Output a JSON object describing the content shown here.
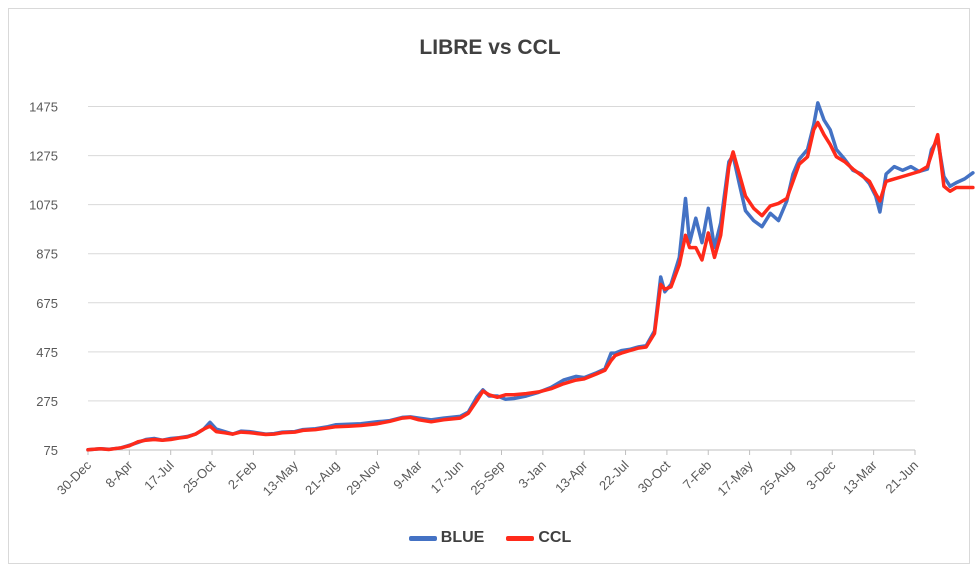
{
  "chart_data": {
    "type": "line",
    "title": "LIBRE vs CCL",
    "xlabel": "",
    "ylabel": "",
    "ylim": [
      75,
      1575
    ],
    "yticks": [
      75,
      275,
      475,
      675,
      875,
      1075,
      1275,
      1475
    ],
    "grid": true,
    "legend": "bottom",
    "categories": [
      "30-Dec",
      "8-Apr",
      "17-Jul",
      "25-Oct",
      "2-Feb",
      "13-May",
      "21-Aug",
      "29-Nov",
      "9-Mar",
      "17-Jun",
      "25-Sep",
      "3-Jan",
      "13-Apr",
      "22-Jul",
      "30-Oct",
      "7-Feb",
      "17-May",
      "25-Aug",
      "3-Dec",
      "13-Mar",
      "21-Jun"
    ],
    "series": [
      {
        "name": "BLUE",
        "color": "#4472c4",
        "values": [
          [
            0,
            76
          ],
          [
            0.3,
            80
          ],
          [
            0.5,
            78
          ],
          [
            0.8,
            84
          ],
          [
            1.0,
            94
          ],
          [
            1.2,
            105
          ],
          [
            1.4,
            118
          ],
          [
            1.6,
            122
          ],
          [
            1.8,
            115
          ],
          [
            2.0,
            122
          ],
          [
            2.2,
            125
          ],
          [
            2.4,
            130
          ],
          [
            2.6,
            140
          ],
          [
            2.8,
            160
          ],
          [
            2.95,
            188
          ],
          [
            3.1,
            160
          ],
          [
            3.3,
            150
          ],
          [
            3.5,
            140
          ],
          [
            3.7,
            152
          ],
          [
            3.9,
            150
          ],
          [
            4.1,
            145
          ],
          [
            4.3,
            140
          ],
          [
            4.5,
            142
          ],
          [
            4.7,
            148
          ],
          [
            5.0,
            150
          ],
          [
            5.2,
            158
          ],
          [
            5.5,
            162
          ],
          [
            5.8,
            170
          ],
          [
            6.0,
            178
          ],
          [
            6.3,
            180
          ],
          [
            6.6,
            182
          ],
          [
            7.0,
            190
          ],
          [
            7.3,
            195
          ],
          [
            7.6,
            208
          ],
          [
            7.8,
            210
          ],
          [
            8.0,
            205
          ],
          [
            8.3,
            198
          ],
          [
            8.6,
            205
          ],
          [
            9.0,
            212
          ],
          [
            9.2,
            230
          ],
          [
            9.4,
            290
          ],
          [
            9.55,
            320
          ],
          [
            9.7,
            295
          ],
          [
            9.9,
            295
          ],
          [
            10.1,
            282
          ],
          [
            10.3,
            285
          ],
          [
            10.6,
            295
          ],
          [
            10.9,
            310
          ],
          [
            11.2,
            330
          ],
          [
            11.5,
            360
          ],
          [
            11.8,
            375
          ],
          [
            12.0,
            370
          ],
          [
            12.3,
            390
          ],
          [
            12.5,
            405
          ],
          [
            12.65,
            470
          ],
          [
            12.75,
            470
          ],
          [
            12.9,
            480
          ],
          [
            13.1,
            485
          ],
          [
            13.3,
            495
          ],
          [
            13.5,
            500
          ],
          [
            13.7,
            560
          ],
          [
            13.85,
            780
          ],
          [
            13.95,
            720
          ],
          [
            14.1,
            750
          ],
          [
            14.3,
            860
          ],
          [
            14.45,
            1100
          ],
          [
            14.55,
            920
          ],
          [
            14.7,
            1020
          ],
          [
            14.85,
            920
          ],
          [
            15.0,
            1060
          ],
          [
            15.15,
            900
          ],
          [
            15.3,
            1000
          ],
          [
            15.5,
            1250
          ],
          [
            15.6,
            1275
          ],
          [
            15.75,
            1160
          ],
          [
            15.9,
            1050
          ],
          [
            16.1,
            1010
          ],
          [
            16.3,
            985
          ],
          [
            16.5,
            1040
          ],
          [
            16.7,
            1010
          ],
          [
            16.9,
            1090
          ],
          [
            17.05,
            1200
          ],
          [
            17.2,
            1260
          ],
          [
            17.4,
            1300
          ],
          [
            17.55,
            1400
          ],
          [
            17.65,
            1490
          ],
          [
            17.8,
            1420
          ],
          [
            17.95,
            1380
          ],
          [
            18.1,
            1300
          ],
          [
            18.3,
            1260
          ],
          [
            18.5,
            1215
          ],
          [
            18.7,
            1200
          ],
          [
            18.9,
            1160
          ],
          [
            19.05,
            1110
          ],
          [
            19.15,
            1045
          ],
          [
            19.3,
            1200
          ],
          [
            19.5,
            1230
          ],
          [
            19.7,
            1215
          ],
          [
            19.9,
            1230
          ],
          [
            20.1,
            1210
          ],
          [
            20.3,
            1220
          ],
          [
            20.4,
            1300
          ],
          [
            20.55,
            1340
          ],
          [
            20.7,
            1190
          ],
          [
            20.85,
            1150
          ],
          [
            21.0,
            1165
          ],
          [
            21.2,
            1180
          ],
          [
            21.4,
            1205
          ]
        ]
      },
      {
        "name": "CCL",
        "color": "#ff2a1a",
        "values": [
          [
            0,
            76
          ],
          [
            0.3,
            80
          ],
          [
            0.5,
            77
          ],
          [
            0.8,
            84
          ],
          [
            1.0,
            92
          ],
          [
            1.2,
            108
          ],
          [
            1.4,
            115
          ],
          [
            1.6,
            118
          ],
          [
            1.8,
            115
          ],
          [
            2.0,
            118
          ],
          [
            2.2,
            124
          ],
          [
            2.4,
            128
          ],
          [
            2.6,
            140
          ],
          [
            2.8,
            160
          ],
          [
            2.95,
            172
          ],
          [
            3.1,
            150
          ],
          [
            3.3,
            145
          ],
          [
            3.5,
            140
          ],
          [
            3.7,
            148
          ],
          [
            3.9,
            146
          ],
          [
            4.1,
            142
          ],
          [
            4.3,
            138
          ],
          [
            4.5,
            140
          ],
          [
            4.7,
            145
          ],
          [
            5.0,
            148
          ],
          [
            5.2,
            155
          ],
          [
            5.5,
            158
          ],
          [
            5.8,
            165
          ],
          [
            6.0,
            170
          ],
          [
            6.3,
            172
          ],
          [
            6.6,
            175
          ],
          [
            7.0,
            182
          ],
          [
            7.3,
            192
          ],
          [
            7.6,
            205
          ],
          [
            7.8,
            208
          ],
          [
            8.0,
            198
          ],
          [
            8.3,
            190
          ],
          [
            8.6,
            198
          ],
          [
            9.0,
            205
          ],
          [
            9.2,
            225
          ],
          [
            9.4,
            275
          ],
          [
            9.55,
            315
          ],
          [
            9.7,
            300
          ],
          [
            9.9,
            290
          ],
          [
            10.1,
            300
          ],
          [
            10.3,
            300
          ],
          [
            10.6,
            305
          ],
          [
            10.9,
            312
          ],
          [
            11.2,
            325
          ],
          [
            11.5,
            345
          ],
          [
            11.8,
            360
          ],
          [
            12.0,
            365
          ],
          [
            12.3,
            385
          ],
          [
            12.5,
            400
          ],
          [
            12.65,
            440
          ],
          [
            12.75,
            460
          ],
          [
            12.9,
            470
          ],
          [
            13.1,
            480
          ],
          [
            13.3,
            490
          ],
          [
            13.5,
            495
          ],
          [
            13.7,
            550
          ],
          [
            13.85,
            750
          ],
          [
            13.95,
            730
          ],
          [
            14.1,
            740
          ],
          [
            14.3,
            830
          ],
          [
            14.45,
            950
          ],
          [
            14.55,
            900
          ],
          [
            14.7,
            900
          ],
          [
            14.85,
            850
          ],
          [
            15.0,
            960
          ],
          [
            15.15,
            860
          ],
          [
            15.3,
            950
          ],
          [
            15.5,
            1230
          ],
          [
            15.6,
            1290
          ],
          [
            15.75,
            1200
          ],
          [
            15.9,
            1110
          ],
          [
            16.1,
            1060
          ],
          [
            16.3,
            1030
          ],
          [
            16.5,
            1070
          ],
          [
            16.7,
            1080
          ],
          [
            16.9,
            1100
          ],
          [
            17.05,
            1170
          ],
          [
            17.2,
            1240
          ],
          [
            17.4,
            1270
          ],
          [
            17.55,
            1380
          ],
          [
            17.65,
            1410
          ],
          [
            17.8,
            1360
          ],
          [
            17.95,
            1320
          ],
          [
            18.1,
            1270
          ],
          [
            18.3,
            1250
          ],
          [
            18.5,
            1220
          ],
          [
            18.7,
            1195
          ],
          [
            18.9,
            1170
          ],
          [
            19.05,
            1120
          ],
          [
            19.15,
            1090
          ],
          [
            19.3,
            1170
          ],
          [
            19.5,
            1180
          ],
          [
            19.7,
            1190
          ],
          [
            19.9,
            1200
          ],
          [
            20.1,
            1210
          ],
          [
            20.3,
            1230
          ],
          [
            20.4,
            1280
          ],
          [
            20.55,
            1360
          ],
          [
            20.7,
            1150
          ],
          [
            20.85,
            1130
          ],
          [
            21.0,
            1145
          ],
          [
            21.2,
            1145
          ],
          [
            21.4,
            1145
          ]
        ]
      }
    ]
  }
}
